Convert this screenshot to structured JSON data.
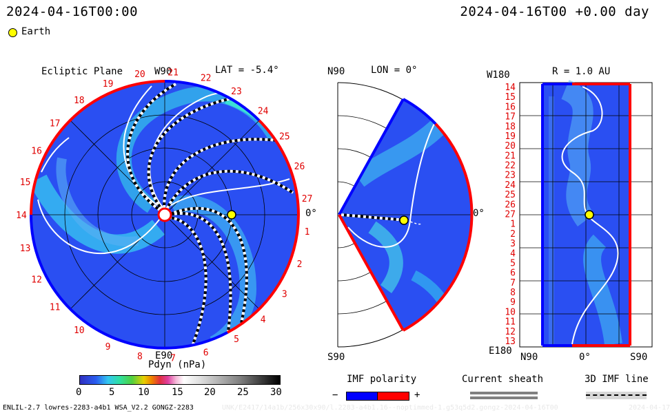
{
  "header": {
    "left_time": "2024-04-16T00:00",
    "right_time": "2024-04-16T00 +0.00 day",
    "legend_earth": "Earth"
  },
  "panel_ecliptic": {
    "title": "Ecliptic Plane",
    "top_label": "W90",
    "bottom_label": "E90",
    "right_label": "0°",
    "lat_label": "LAT = -5.4°",
    "rotations": [
      "1",
      "2",
      "3",
      "4",
      "5",
      "6",
      "7",
      "8",
      "9",
      "10",
      "11",
      "12",
      "13",
      "14",
      "15",
      "16",
      "17",
      "18",
      "19",
      "20",
      "21",
      "22",
      "23",
      "24",
      "25",
      "26",
      "27"
    ]
  },
  "panel_meridional": {
    "top_label": "N90",
    "bottom_label": "S90",
    "lon_label": "LON = 0°",
    "right_label": "0°"
  },
  "panel_radial": {
    "top_left_label": "W180",
    "bottom_left_label": "E180",
    "r_label": "R = 1.0 AU",
    "bottom_labels": [
      "N90",
      "0°",
      "S90"
    ],
    "rotations": [
      "14",
      "15",
      "16",
      "17",
      "18",
      "19",
      "20",
      "21",
      "22",
      "23",
      "24",
      "25",
      "26",
      "27",
      "1",
      "2",
      "3",
      "4",
      "5",
      "6",
      "7",
      "8",
      "9",
      "10",
      "11",
      "12",
      "13"
    ]
  },
  "colorbar": {
    "title": "Pdyn (nPa)",
    "ticks": [
      "0",
      "5",
      "10",
      "15",
      "20",
      "25",
      "30"
    ],
    "range": [
      0,
      30
    ]
  },
  "legends": {
    "imf_polarity": "IMF polarity",
    "minus": "−",
    "plus": "+",
    "current_sheath": "Current sheath",
    "imf_line": "3D IMF line"
  },
  "footer": {
    "left": "ENLIL-2.7 lowres-2283-a4b1 WSA_V2.2 GONGZ-2283",
    "middle": "UNK/E2417/14a1b/256x30x90/l.2283-a4b1.16--noptimmed-1.g53q5d2.gongz-2024-04-16T00",
    "right": "2024-04-17"
  },
  "colors": {
    "positive": "#ff0000",
    "negative": "#0000ff",
    "earth": "#ffff00",
    "background": "#2a50f0"
  }
}
